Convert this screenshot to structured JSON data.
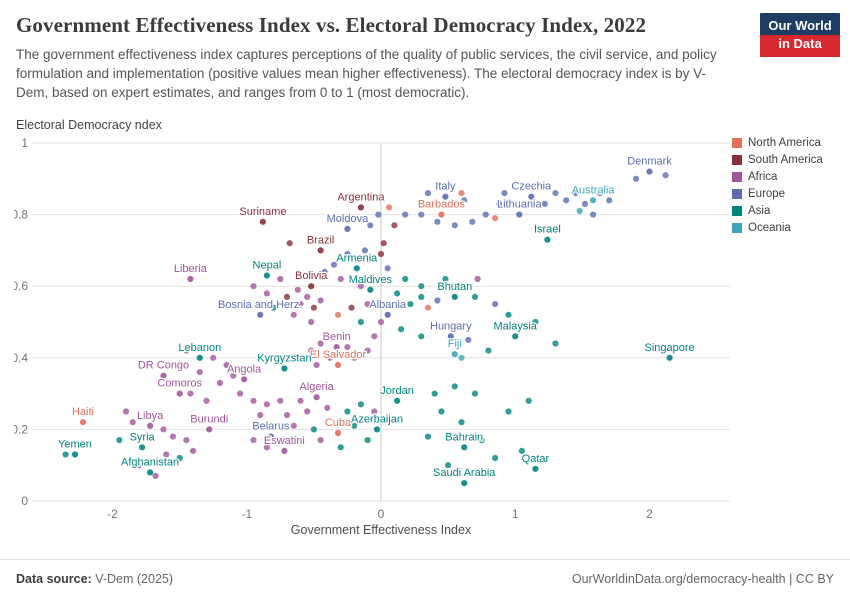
{
  "brand": {
    "logo_line1": "Our World",
    "logo_line2": "in Data",
    "navy": "#1D3D63",
    "red": "#D7282F"
  },
  "chart_data": {
    "type": "scatter",
    "title": "Government Effectiveness Index vs. Electoral Democracy Index, 2022",
    "subtitle": "The government effectiveness index captures perceptions of the quality of public services, the civil service, and policy formulation and implementation (positive values mean higher effectiveness). The electoral democracy index is by V-Dem, based on expert estimates, and ranges from 0 to 1 (most democratic).",
    "xlabel": "Government Effectiveness Index",
    "ylabel": "Electoral Democracy ndex",
    "xlim": [
      -2.6,
      2.6
    ],
    "ylim": [
      0,
      1
    ],
    "xticks": [
      -2,
      -1,
      0,
      1,
      2
    ],
    "yticks": [
      0,
      0.2,
      0.4,
      0.6,
      0.8,
      1
    ],
    "grid": "horizontal",
    "legend_position": "right",
    "continents": [
      {
        "name": "North America",
        "color": "#E56E5A"
      },
      {
        "name": "South America",
        "color": "#883039"
      },
      {
        "name": "Africa",
        "color": "#A2559C"
      },
      {
        "name": "Europe",
        "color": "#5B6DB1"
      },
      {
        "name": "Asia",
        "color": "#00847E"
      },
      {
        "name": "Oceania",
        "color": "#3CA7B7"
      }
    ],
    "labeled_points": [
      {
        "name": "Denmark",
        "x": 2.0,
        "y": 0.92,
        "c": 3
      },
      {
        "name": "Czechia",
        "x": 1.12,
        "y": 0.85,
        "c": 3
      },
      {
        "name": "Australia",
        "x": 1.58,
        "y": 0.84,
        "c": 5
      },
      {
        "name": "Italy",
        "x": 0.48,
        "y": 0.85,
        "c": 3
      },
      {
        "name": "Argentina",
        "x": -0.15,
        "y": 0.82,
        "c": 1
      },
      {
        "name": "Lithuania",
        "x": 1.03,
        "y": 0.8,
        "c": 3
      },
      {
        "name": "Barbados",
        "x": 0.45,
        "y": 0.8,
        "c": 0
      },
      {
        "name": "Suriname",
        "x": -0.88,
        "y": 0.78,
        "c": 1
      },
      {
        "name": "Moldova",
        "x": -0.25,
        "y": 0.76,
        "c": 3
      },
      {
        "name": "Israel",
        "x": 1.24,
        "y": 0.73,
        "c": 4
      },
      {
        "name": "Brazil",
        "x": -0.45,
        "y": 0.7,
        "c": 1
      },
      {
        "name": "Armenia",
        "x": -0.18,
        "y": 0.65,
        "c": 4
      },
      {
        "name": "Nepal",
        "x": -0.85,
        "y": 0.63,
        "c": 4
      },
      {
        "name": "Liberia",
        "x": -1.42,
        "y": 0.62,
        "c": 2
      },
      {
        "name": "Bolivia",
        "x": -0.52,
        "y": 0.6,
        "c": 1
      },
      {
        "name": "Maldives",
        "x": -0.08,
        "y": 0.59,
        "c": 4
      },
      {
        "name": "Bhutan",
        "x": 0.55,
        "y": 0.57,
        "c": 4
      },
      {
        "name": "Bosnia and Herz.",
        "x": -0.9,
        "y": 0.52,
        "c": 3
      },
      {
        "name": "Albania",
        "x": 0.05,
        "y": 0.52,
        "c": 3
      },
      {
        "name": "Hungary",
        "x": 0.52,
        "y": 0.46,
        "c": 3
      },
      {
        "name": "Malaysia",
        "x": 1.0,
        "y": 0.46,
        "c": 4
      },
      {
        "name": "Benin",
        "x": -0.33,
        "y": 0.43,
        "c": 2
      },
      {
        "name": "Fiji",
        "x": 0.55,
        "y": 0.41,
        "c": 5
      },
      {
        "name": "Singapore",
        "x": 2.15,
        "y": 0.4,
        "c": 4
      },
      {
        "name": "Lebanon",
        "x": -1.35,
        "y": 0.4,
        "c": 4
      },
      {
        "name": "El Salvador",
        "x": -0.32,
        "y": 0.38,
        "c": 0
      },
      {
        "name": "Kyrgyzstan",
        "x": -0.72,
        "y": 0.37,
        "c": 4
      },
      {
        "name": "DR Congo",
        "x": -1.62,
        "y": 0.35,
        "c": 2
      },
      {
        "name": "Angola",
        "x": -1.02,
        "y": 0.34,
        "c": 2
      },
      {
        "name": "Comoros",
        "x": -1.5,
        "y": 0.3,
        "c": 2
      },
      {
        "name": "Algeria",
        "x": -0.48,
        "y": 0.29,
        "c": 2
      },
      {
        "name": "Jordan",
        "x": 0.12,
        "y": 0.28,
        "c": 4
      },
      {
        "name": "Haiti",
        "x": -2.22,
        "y": 0.22,
        "c": 0
      },
      {
        "name": "Libya",
        "x": -1.72,
        "y": 0.21,
        "c": 2
      },
      {
        "name": "Burundi",
        "x": -1.28,
        "y": 0.2,
        "c": 2
      },
      {
        "name": "Belarus",
        "x": -0.82,
        "y": 0.18,
        "c": 3
      },
      {
        "name": "Cuba",
        "x": -0.32,
        "y": 0.19,
        "c": 0
      },
      {
        "name": "Azerbaijan",
        "x": -0.03,
        "y": 0.2,
        "c": 4
      },
      {
        "name": "Yemen",
        "x": -2.28,
        "y": 0.13,
        "c": 4
      },
      {
        "name": "Syria",
        "x": -1.78,
        "y": 0.15,
        "c": 4
      },
      {
        "name": "Eswatini",
        "x": -0.72,
        "y": 0.14,
        "c": 2
      },
      {
        "name": "Bahrain",
        "x": 0.62,
        "y": 0.15,
        "c": 4
      },
      {
        "name": "Afghanistan",
        "x": -1.72,
        "y": 0.08,
        "c": 4
      },
      {
        "name": "Qatar",
        "x": 1.15,
        "y": 0.09,
        "c": 4
      },
      {
        "name": "Saudi Arabia",
        "x": 0.62,
        "y": 0.05,
        "c": 4
      }
    ],
    "points": [
      [
        1.9,
        0.9,
        3
      ],
      [
        2.12,
        0.91,
        3
      ],
      [
        1.45,
        0.86,
        3
      ],
      [
        1.52,
        0.83,
        3
      ],
      [
        1.63,
        0.86,
        3
      ],
      [
        1.7,
        0.84,
        3
      ],
      [
        1.38,
        0.84,
        3
      ],
      [
        1.3,
        0.86,
        3
      ],
      [
        1.22,
        0.83,
        3
      ],
      [
        0.92,
        0.86,
        3
      ],
      [
        0.88,
        0.83,
        3
      ],
      [
        1.48,
        0.81,
        5
      ],
      [
        1.58,
        0.8,
        3
      ],
      [
        1.15,
        0.88,
        3
      ],
      [
        0.35,
        0.86,
        3
      ],
      [
        0.62,
        0.84,
        3
      ],
      [
        0.42,
        0.78,
        3
      ],
      [
        0.55,
        0.77,
        3
      ],
      [
        0.68,
        0.78,
        3
      ],
      [
        0.78,
        0.8,
        3
      ],
      [
        0.85,
        0.79,
        0
      ],
      [
        0.3,
        0.8,
        3
      ],
      [
        0.6,
        0.86,
        0
      ],
      [
        -0.02,
        0.8,
        3
      ],
      [
        0.06,
        0.82,
        0
      ],
      [
        -0.08,
        0.77,
        3
      ],
      [
        0.1,
        0.77,
        1
      ],
      [
        0.18,
        0.8,
        3
      ],
      [
        0.02,
        0.72,
        1
      ],
      [
        -0.12,
        0.7,
        3
      ],
      [
        0.0,
        0.69,
        1
      ],
      [
        -0.25,
        0.69,
        3
      ],
      [
        -0.35,
        0.66,
        3
      ],
      [
        0.05,
        0.65,
        3
      ],
      [
        -0.05,
        0.62,
        4
      ],
      [
        0.18,
        0.62,
        4
      ],
      [
        0.12,
        0.58,
        4
      ],
      [
        -0.3,
        0.62,
        2
      ],
      [
        -0.42,
        0.64,
        3
      ],
      [
        -0.15,
        0.6,
        2
      ],
      [
        0.3,
        0.6,
        4
      ],
      [
        -0.75,
        0.62,
        2
      ],
      [
        -0.62,
        0.59,
        2
      ],
      [
        -0.55,
        0.57,
        2
      ],
      [
        -0.7,
        0.57,
        1
      ],
      [
        -0.85,
        0.58,
        2
      ],
      [
        -0.95,
        0.6,
        2
      ],
      [
        -0.6,
        0.55,
        2
      ],
      [
        -0.5,
        0.54,
        1
      ],
      [
        -0.45,
        0.56,
        2
      ],
      [
        -0.8,
        0.54,
        4
      ],
      [
        -0.65,
        0.52,
        2
      ],
      [
        -0.52,
        0.5,
        2
      ],
      [
        -0.68,
        0.72,
        1
      ],
      [
        0.3,
        0.57,
        4
      ],
      [
        0.42,
        0.56,
        3
      ],
      [
        0.35,
        0.54,
        0
      ],
      [
        0.22,
        0.55,
        4
      ],
      [
        0.05,
        0.55,
        0
      ],
      [
        -0.1,
        0.55,
        2
      ],
      [
        -0.22,
        0.54,
        1
      ],
      [
        -0.32,
        0.52,
        0
      ],
      [
        -0.15,
        0.5,
        4
      ],
      [
        0.0,
        0.5,
        2
      ],
      [
        0.15,
        0.48,
        4
      ],
      [
        0.3,
        0.46,
        4
      ],
      [
        -0.05,
        0.46,
        2
      ],
      [
        0.48,
        0.62,
        4
      ],
      [
        -0.45,
        0.44,
        2
      ],
      [
        -0.25,
        0.43,
        2
      ],
      [
        -0.52,
        0.42,
        2
      ],
      [
        -0.38,
        0.4,
        2
      ],
      [
        -0.2,
        0.4,
        2
      ],
      [
        -0.1,
        0.42,
        2
      ],
      [
        -0.48,
        0.38,
        2
      ],
      [
        -0.6,
        0.4,
        2
      ],
      [
        -1.45,
        0.42,
        2
      ],
      [
        -1.25,
        0.4,
        2
      ],
      [
        -1.15,
        0.38,
        2
      ],
      [
        -1.35,
        0.36,
        2
      ],
      [
        -1.2,
        0.33,
        2
      ],
      [
        -1.1,
        0.35,
        2
      ],
      [
        -1.55,
        0.33,
        2
      ],
      [
        -1.42,
        0.3,
        2
      ],
      [
        -1.3,
        0.28,
        2
      ],
      [
        -1.05,
        0.3,
        2
      ],
      [
        -1.9,
        0.25,
        2
      ],
      [
        -1.85,
        0.22,
        2
      ],
      [
        -1.62,
        0.2,
        2
      ],
      [
        -1.55,
        0.18,
        2
      ],
      [
        -1.45,
        0.17,
        2
      ],
      [
        -1.95,
        0.17,
        4
      ],
      [
        -1.6,
        0.13,
        2
      ],
      [
        -1.5,
        0.12,
        4
      ],
      [
        -1.4,
        0.14,
        2
      ],
      [
        -2.35,
        0.13,
        4
      ],
      [
        -1.8,
        0.1,
        2
      ],
      [
        -1.68,
        0.07,
        2
      ],
      [
        -0.95,
        0.28,
        2
      ],
      [
        -0.85,
        0.27,
        2
      ],
      [
        -0.75,
        0.28,
        2
      ],
      [
        -0.6,
        0.28,
        2
      ],
      [
        -0.9,
        0.24,
        2
      ],
      [
        -0.7,
        0.24,
        2
      ],
      [
        -0.55,
        0.25,
        2
      ],
      [
        -0.4,
        0.26,
        2
      ],
      [
        -0.65,
        0.21,
        2
      ],
      [
        -0.5,
        0.2,
        4
      ],
      [
        -0.45,
        0.17,
        2
      ],
      [
        -0.85,
        0.15,
        2
      ],
      [
        -0.95,
        0.17,
        2
      ],
      [
        -0.25,
        0.25,
        4
      ],
      [
        -0.15,
        0.27,
        4
      ],
      [
        -0.05,
        0.25,
        2
      ],
      [
        0.05,
        0.23,
        4
      ],
      [
        -0.2,
        0.21,
        4
      ],
      [
        -0.1,
        0.17,
        4
      ],
      [
        -0.3,
        0.15,
        4
      ],
      [
        0.4,
        0.3,
        4
      ],
      [
        0.55,
        0.32,
        4
      ],
      [
        0.7,
        0.3,
        4
      ],
      [
        0.45,
        0.25,
        4
      ],
      [
        0.6,
        0.22,
        4
      ],
      [
        0.35,
        0.18,
        4
      ],
      [
        0.75,
        0.17,
        4
      ],
      [
        0.5,
        0.1,
        4
      ],
      [
        0.85,
        0.12,
        4
      ],
      [
        1.05,
        0.14,
        4
      ],
      [
        0.95,
        0.25,
        4
      ],
      [
        1.1,
        0.28,
        4
      ],
      [
        0.7,
        0.57,
        4
      ],
      [
        0.85,
        0.55,
        3
      ],
      [
        0.95,
        0.52,
        4
      ],
      [
        1.15,
        0.5,
        4
      ],
      [
        0.65,
        0.45,
        3
      ],
      [
        0.8,
        0.42,
        4
      ],
      [
        1.3,
        0.44,
        4
      ],
      [
        0.6,
        0.4,
        5
      ],
      [
        0.72,
        0.62,
        2
      ]
    ]
  },
  "footer": {
    "source_label": "Data source:",
    "source": "V-Dem (2025)",
    "right": "OurWorldinData.org/democracy-health | CC BY"
  }
}
